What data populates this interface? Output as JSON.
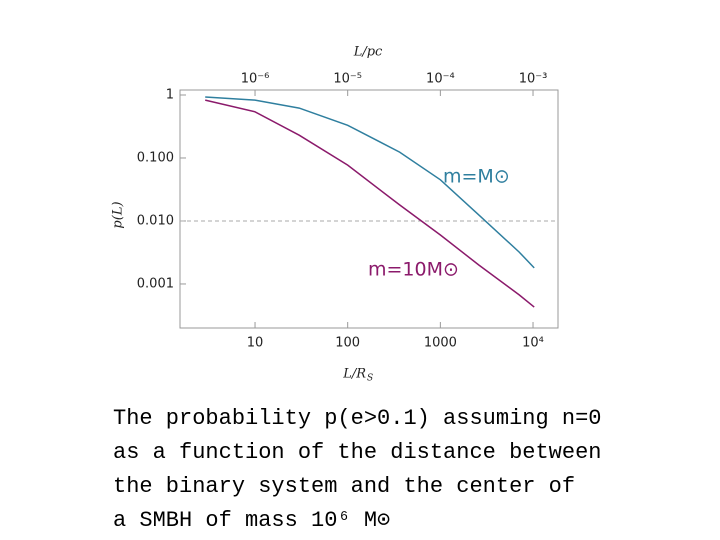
{
  "chart_data": {
    "type": "line",
    "xscale": "log",
    "yscale": "log",
    "xlabel": "L/R",
    "xlabel_sub": "S",
    "x2label": "L/pc",
    "ylabel": "p(L)",
    "x": [
      2.9,
      10,
      30,
      100,
      363,
      1000,
      2600,
      7100,
      10300
    ],
    "series": [
      {
        "name": "m=M⊙",
        "color": "#2f7f9f",
        "values": [
          0.93,
          0.83,
          0.62,
          0.33,
          0.124,
          0.045,
          0.0125,
          0.0032,
          0.0018
        ]
      },
      {
        "name": "m=10M⊙",
        "color": "#8b1a6b",
        "values": [
          0.83,
          0.54,
          0.23,
          0.077,
          0.018,
          0.006,
          0.002,
          0.00067,
          0.00043
        ]
      }
    ],
    "xlim": [
      1.55,
      18600
    ],
    "xticks": [
      10,
      100,
      1000,
      {
        "value": 10000,
        "label": "10⁴"
      }
    ],
    "x2lim": [
      1.55e-07,
      0.00186
    ],
    "x2ticks": [
      {
        "value": 1e-06,
        "label": "10⁻⁶"
      },
      {
        "value": 1e-05,
        "label": "10⁻⁵"
      },
      {
        "value": 0.0001,
        "label": "10⁻⁴"
      },
      {
        "value": 0.001,
        "label": "10⁻³"
      }
    ],
    "ylim": [
      0.0002,
      1.2
    ],
    "yticks": [
      1,
      {
        "value": 0.1,
        "label": "0.100"
      },
      {
        "value": 0.01,
        "label": "0.010"
      },
      0.001
    ],
    "hline": 0.01,
    "caption": [
      "The probability p(e>0.1) assuming n=0",
      "as a function of the distance between",
      "the binary system and the center of",
      "a SMBH  of mass 10⁶ M⊙"
    ]
  }
}
